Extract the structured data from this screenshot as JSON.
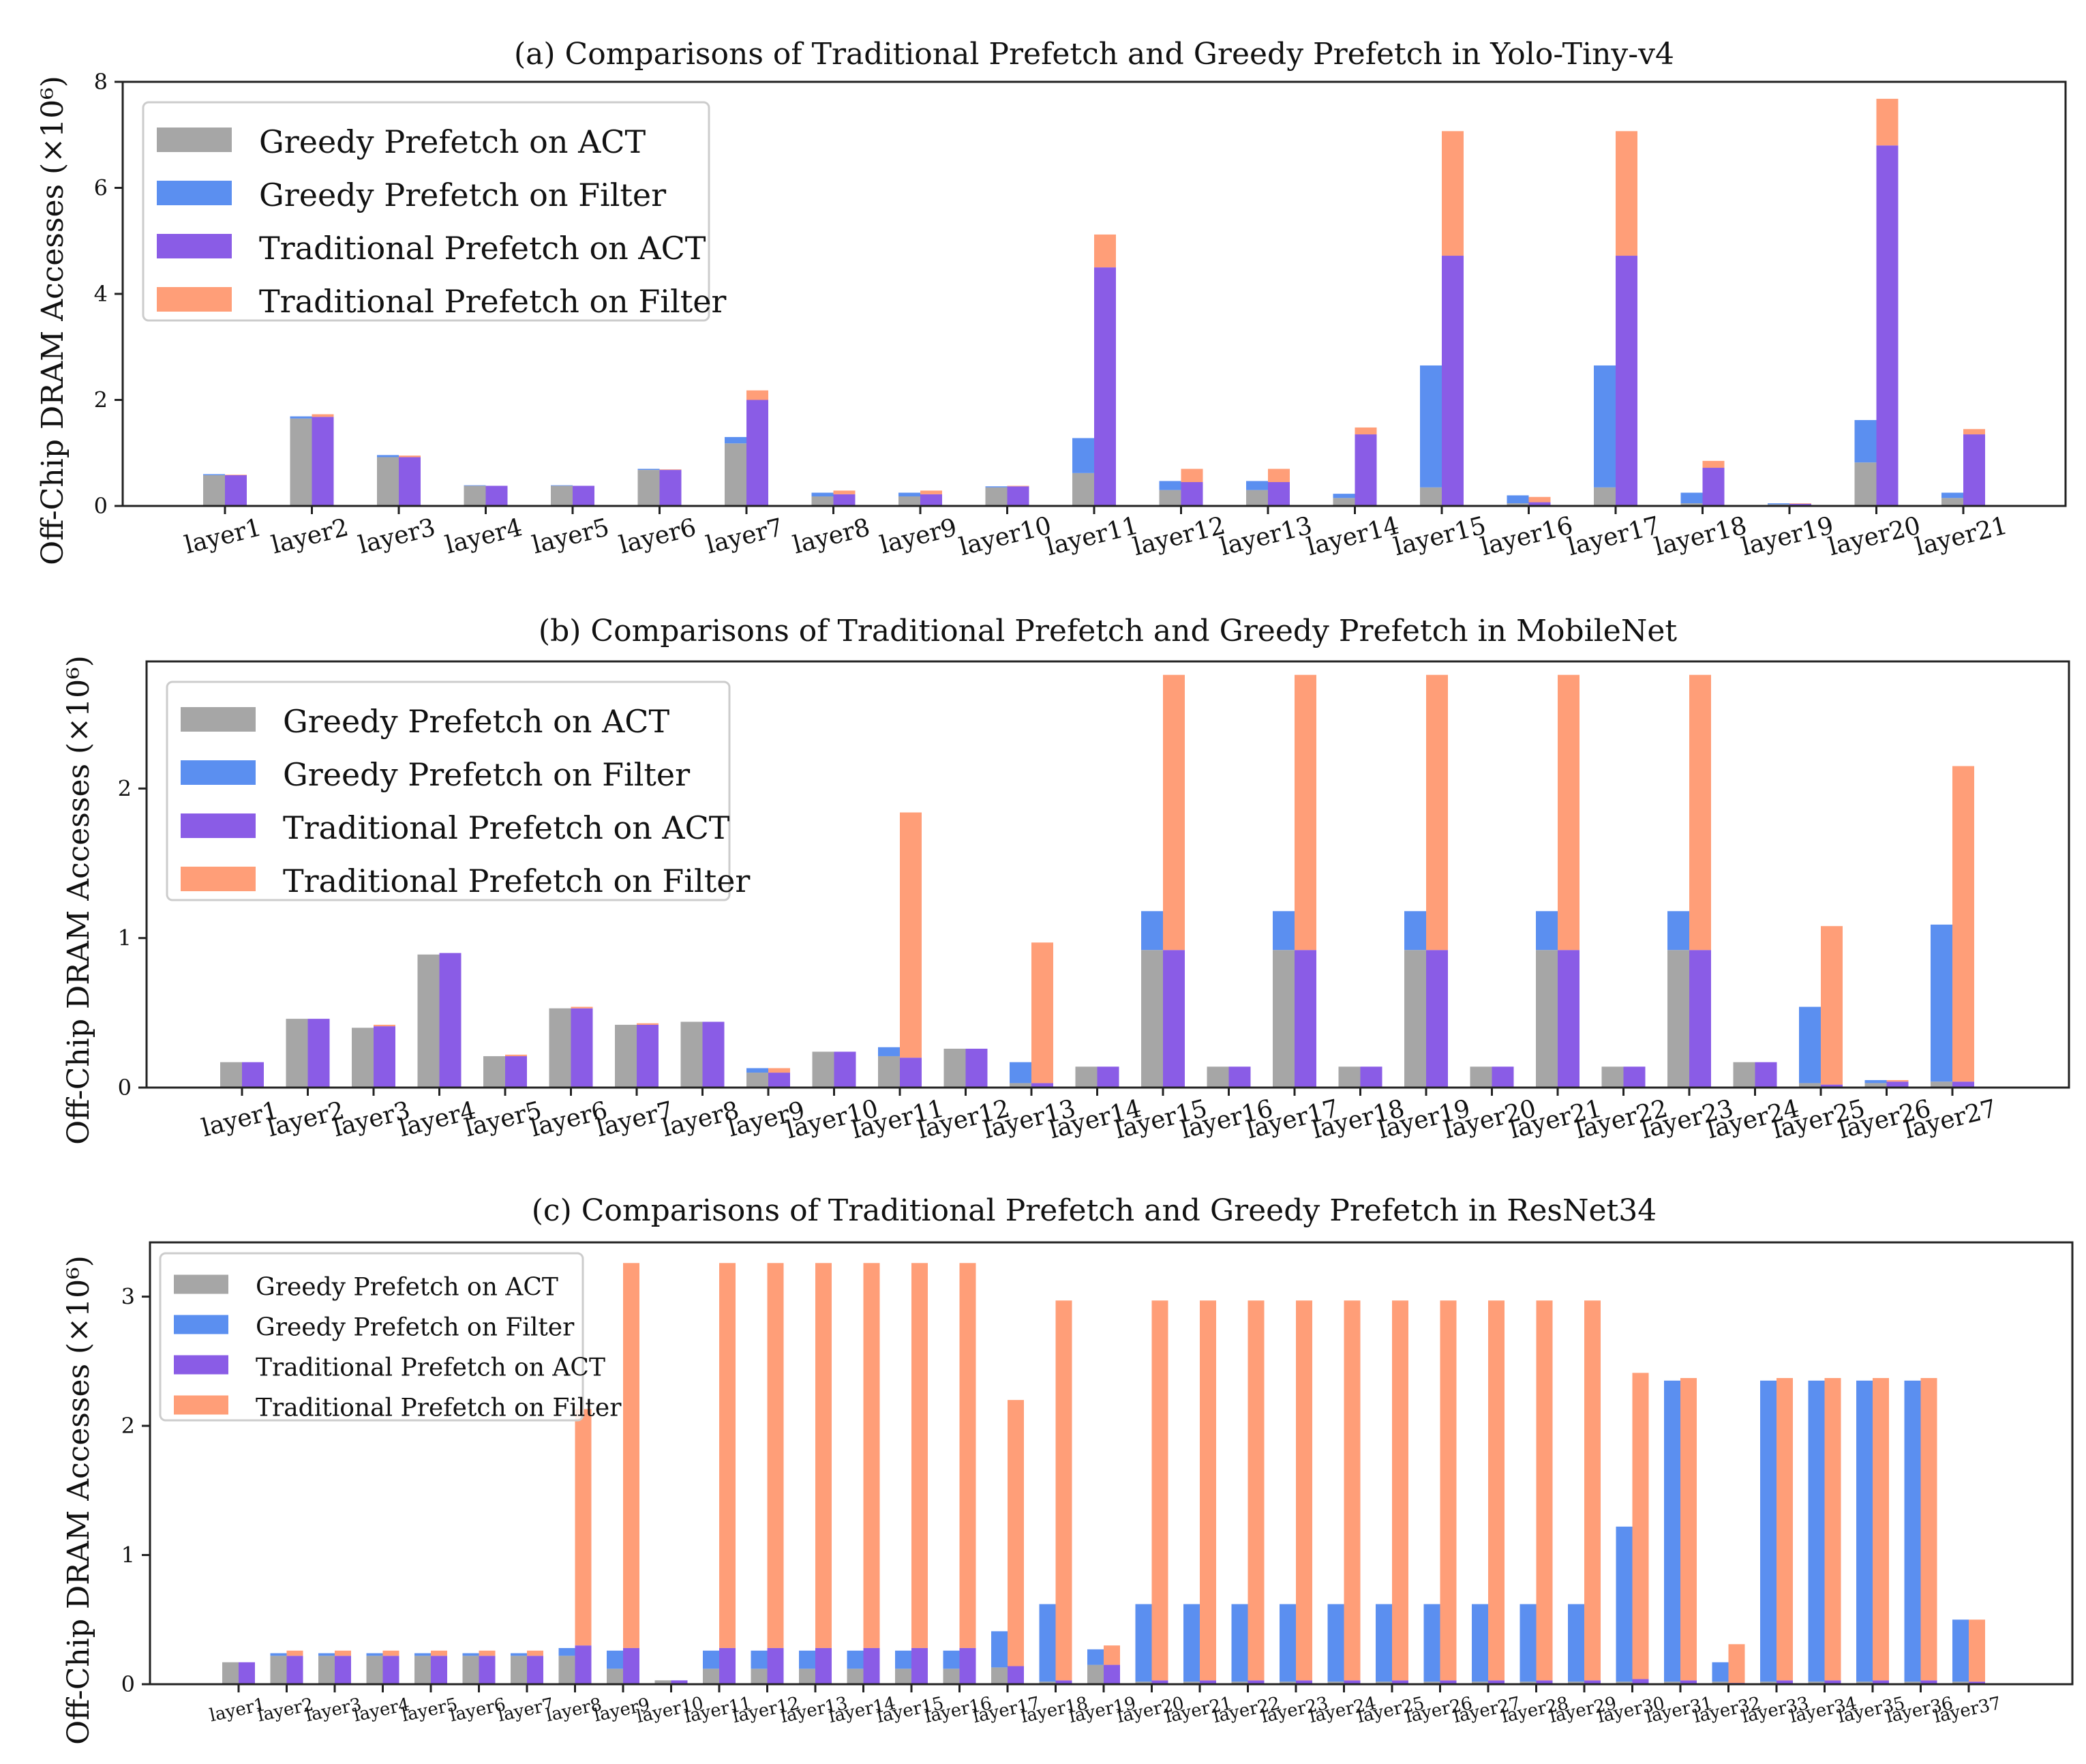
{
  "colors": {
    "greedy_act": "#a6a6a6",
    "greedy_filter": "#5b8ff0",
    "trad_act": "#8a5ce6",
    "trad_filter": "#ff9e78"
  },
  "legend": [
    "Greedy Prefetch on ACT",
    "Greedy Prefetch on Filter",
    "Traditional Prefetch on ACT",
    "Traditional Prefetch on Filter"
  ],
  "chart_data": [
    {
      "type": "bar",
      "title": "(a) Comparisons of Traditional Prefetch and Greedy Prefetch in Yolo-Tiny-v4",
      "ylabel": "Off-Chip DRAM Accesses (×10⁶)",
      "ylim": [
        0,
        8
      ],
      "yticks": [
        "0",
        "2",
        "4",
        "6",
        "8"
      ],
      "ytick_values": [
        0,
        2,
        4,
        6,
        8
      ],
      "legend_position": "top-left",
      "categories": [
        "layer1",
        "layer2",
        "layer3",
        "layer4",
        "layer5",
        "layer6",
        "layer7",
        "layer8",
        "layer9",
        "layer10",
        "layer11",
        "layer12",
        "layer13",
        "layer14",
        "layer15",
        "layer16",
        "layer17",
        "layer18",
        "layer19",
        "layer20",
        "layer21"
      ],
      "series": [
        {
          "name": "Greedy Prefetch on ACT",
          "values": [
            0.58,
            1.65,
            0.92,
            0.38,
            0.38,
            0.68,
            1.18,
            0.18,
            0.18,
            0.35,
            0.62,
            0.3,
            0.3,
            0.15,
            0.35,
            0.05,
            0.35,
            0.05,
            0.03,
            0.82,
            0.15
          ]
        },
        {
          "name": "Greedy Prefetch on Filter",
          "values": [
            0.02,
            0.04,
            0.04,
            0.01,
            0.01,
            0.02,
            0.12,
            0.07,
            0.07,
            0.02,
            0.66,
            0.17,
            0.17,
            0.08,
            2.3,
            0.15,
            2.3,
            0.2,
            0.02,
            0.8,
            0.1
          ]
        },
        {
          "name": "Traditional Prefetch on ACT",
          "values": [
            0.58,
            1.68,
            0.92,
            0.38,
            0.38,
            0.68,
            2.0,
            0.22,
            0.22,
            0.37,
            4.5,
            0.45,
            0.45,
            1.35,
            4.72,
            0.07,
            4.72,
            0.72,
            0.04,
            6.8,
            1.35
          ]
        },
        {
          "name": "Traditional Prefetch on Filter",
          "values": [
            0.01,
            0.05,
            0.03,
            0.0,
            0.0,
            0.01,
            0.18,
            0.07,
            0.07,
            0.01,
            0.62,
            0.25,
            0.25,
            0.13,
            2.35,
            0.1,
            2.35,
            0.13,
            0.01,
            0.88,
            0.1
          ]
        }
      ]
    },
    {
      "type": "bar",
      "title": "(b) Comparisons of Traditional Prefetch and Greedy Prefetch in MobileNet",
      "ylabel": "Off-Chip DRAM Accesses (×10⁶)",
      "ylim": [
        0,
        2.85
      ],
      "yticks": [
        "0",
        "1",
        "2"
      ],
      "ytick_values": [
        0,
        1,
        2
      ],
      "legend_position": "top-left",
      "categories": [
        "layer1",
        "layer2",
        "layer3",
        "layer4",
        "layer5",
        "layer6",
        "layer7",
        "layer8",
        "layer9",
        "layer10",
        "layer11",
        "layer12",
        "layer13",
        "layer14",
        "layer15",
        "layer16",
        "layer17",
        "layer18",
        "layer19",
        "layer20",
        "layer21",
        "layer22",
        "layer23",
        "layer24",
        "layer25",
        "layer26",
        "layer27"
      ],
      "series": [
        {
          "name": "Greedy Prefetch on ACT",
          "values": [
            0.17,
            0.46,
            0.4,
            0.89,
            0.21,
            0.53,
            0.42,
            0.44,
            0.1,
            0.24,
            0.21,
            0.26,
            0.03,
            0.14,
            0.92,
            0.14,
            0.92,
            0.14,
            0.92,
            0.14,
            0.92,
            0.14,
            0.92,
            0.17,
            0.03,
            0.03,
            0.04
          ]
        },
        {
          "name": "Greedy Prefetch on Filter",
          "values": [
            0.0,
            0.0,
            0.0,
            0.0,
            0.0,
            0.0,
            0.0,
            0.0,
            0.03,
            0.0,
            0.06,
            0.0,
            0.14,
            0.0,
            0.26,
            0.0,
            0.26,
            0.0,
            0.26,
            0.0,
            0.26,
            0.0,
            0.26,
            0.0,
            0.51,
            0.02,
            1.05
          ]
        },
        {
          "name": "Traditional Prefetch on ACT",
          "values": [
            0.17,
            0.46,
            0.41,
            0.9,
            0.21,
            0.53,
            0.42,
            0.44,
            0.1,
            0.24,
            0.2,
            0.26,
            0.03,
            0.14,
            0.92,
            0.14,
            0.92,
            0.14,
            0.92,
            0.14,
            0.92,
            0.14,
            0.92,
            0.17,
            0.02,
            0.04,
            0.04
          ]
        },
        {
          "name": "Traditional Prefetch on Filter",
          "values": [
            0.0,
            0.0,
            0.01,
            0.0,
            0.01,
            0.01,
            0.01,
            0.0,
            0.03,
            0.0,
            1.64,
            0.0,
            0.94,
            0.0,
            1.84,
            0.0,
            1.84,
            0.0,
            1.84,
            0.0,
            1.84,
            0.0,
            1.84,
            0.0,
            1.06,
            0.01,
            2.11
          ]
        }
      ]
    },
    {
      "type": "bar",
      "title": "(c) Comparisons of Traditional Prefetch and Greedy Prefetch in ResNet34",
      "ylabel": "Off-Chip DRAM Accesses (×10⁶)",
      "ylim": [
        0,
        3.42
      ],
      "yticks": [
        "0",
        "1",
        "2",
        "3"
      ],
      "ytick_values": [
        0,
        1,
        2,
        3
      ],
      "legend_position": "top-left",
      "categories": [
        "layer1",
        "layer2",
        "layer3",
        "layer4",
        "layer5",
        "layer6",
        "layer7",
        "layer8",
        "layer9",
        "layer10",
        "layer11",
        "layer12",
        "layer13",
        "layer14",
        "layer15",
        "layer16",
        "layer17",
        "layer18",
        "layer19",
        "layer20",
        "layer21",
        "layer22",
        "layer23",
        "layer24",
        "layer25",
        "layer26",
        "layer27",
        "layer28",
        "layer29",
        "layer30",
        "layer31",
        "layer32",
        "layer33",
        "layer34",
        "layer35",
        "layer36",
        "layer37"
      ],
      "series": [
        {
          "name": "Greedy Prefetch on ACT",
          "values": [
            0.17,
            0.22,
            0.22,
            0.22,
            0.22,
            0.22,
            0.22,
            0.22,
            0.12,
            0.03,
            0.12,
            0.12,
            0.12,
            0.12,
            0.12,
            0.12,
            0.13,
            0.02,
            0.15,
            0.02,
            0.02,
            0.02,
            0.02,
            0.02,
            0.02,
            0.02,
            0.02,
            0.02,
            0.02,
            0.02,
            0.02,
            0.02,
            0.02,
            0.02,
            0.02,
            0.02,
            0.02
          ]
        },
        {
          "name": "Greedy Prefetch on Filter",
          "values": [
            0.0,
            0.02,
            0.02,
            0.02,
            0.02,
            0.02,
            0.02,
            0.06,
            0.14,
            0.0,
            0.14,
            0.14,
            0.14,
            0.14,
            0.14,
            0.14,
            0.28,
            0.6,
            0.12,
            0.6,
            0.6,
            0.6,
            0.6,
            0.6,
            0.6,
            0.6,
            0.6,
            0.6,
            0.6,
            1.2,
            2.33,
            0.15,
            2.33,
            2.33,
            2.33,
            2.33,
            0.48
          ]
        },
        {
          "name": "Traditional Prefetch on ACT",
          "values": [
            0.17,
            0.22,
            0.22,
            0.22,
            0.22,
            0.22,
            0.22,
            0.3,
            0.28,
            0.03,
            0.28,
            0.28,
            0.28,
            0.28,
            0.28,
            0.28,
            0.14,
            0.03,
            0.15,
            0.03,
            0.03,
            0.03,
            0.03,
            0.03,
            0.03,
            0.03,
            0.03,
            0.03,
            0.03,
            0.04,
            0.03,
            0.01,
            0.03,
            0.03,
            0.03,
            0.03,
            0.02
          ]
        },
        {
          "name": "Traditional Prefetch on Filter",
          "values": [
            0.0,
            0.04,
            0.04,
            0.04,
            0.04,
            0.04,
            0.04,
            1.83,
            2.98,
            0.0,
            2.98,
            2.98,
            2.98,
            2.98,
            2.98,
            2.98,
            2.06,
            2.94,
            0.15,
            2.94,
            2.94,
            2.94,
            2.94,
            2.94,
            2.94,
            2.94,
            2.94,
            2.94,
            2.94,
            2.37,
            2.34,
            0.3,
            2.34,
            2.34,
            2.34,
            2.34,
            0.48
          ]
        }
      ]
    }
  ]
}
